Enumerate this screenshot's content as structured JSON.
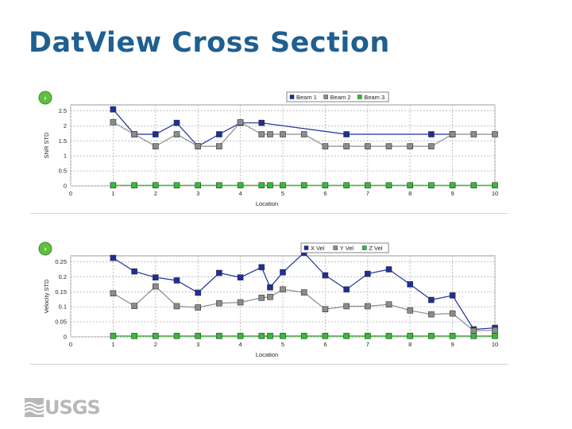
{
  "slide": {
    "title": "DatView Cross Section",
    "logo_text": "USGS"
  },
  "colors": {
    "title": "#1f5f91",
    "series_blue": "#1c2f9c",
    "series_gray": "#8c8c8c",
    "series_green": "#2fbf2f",
    "grid": "#c0c0c0"
  },
  "chart_data": [
    {
      "type": "line",
      "legend_position": "top-right",
      "grid": true,
      "xlabel": "Location",
      "ylabel": "SNR STD",
      "xlim": [
        0,
        10
      ],
      "ylim": [
        0,
        2.7
      ],
      "xticks": [
        0,
        1,
        2,
        3,
        4,
        5,
        6,
        7,
        8,
        9,
        10
      ],
      "yticks": [
        0,
        0.5,
        1,
        1.5,
        2,
        2.5
      ],
      "ytick_labels": [
        "0",
        "0.5",
        "1",
        "1.5",
        "2",
        "2.5"
      ],
      "series": [
        {
          "name": "Beam 1",
          "color": "#1c2f9c",
          "x": [
            1,
            1.5,
            2,
            2.5,
            3,
            3.5,
            4,
            4.5,
            6.5,
            8.5,
            9
          ],
          "y": [
            2.55,
            1.72,
            1.72,
            2.1,
            1.32,
            1.72,
            2.1,
            2.1,
            1.72,
            1.72,
            1.72
          ]
        },
        {
          "name": "Beam 2",
          "color": "#8c8c8c",
          "x": [
            1,
            1.5,
            2,
            2.5,
            3,
            3.5,
            4,
            4.5,
            4.7,
            5,
            5.5,
            6,
            6.5,
            7,
            7.5,
            8,
            8.5,
            9,
            9.5,
            10
          ],
          "y": [
            2.12,
            1.72,
            1.32,
            1.72,
            1.32,
            1.32,
            2.12,
            1.72,
            1.72,
            1.72,
            1.72,
            1.32,
            1.32,
            1.32,
            1.32,
            1.32,
            1.32,
            1.72,
            1.72,
            1.72
          ]
        },
        {
          "name": "Beam 3",
          "color": "#2fbf2f",
          "x": [
            1,
            1.5,
            2,
            2.5,
            3,
            3.5,
            4,
            4.5,
            4.7,
            5,
            5.5,
            6,
            6.5,
            7,
            7.5,
            8,
            8.5,
            9,
            9.5,
            10
          ],
          "y": [
            0.02,
            0.02,
            0.02,
            0.02,
            0.02,
            0.02,
            0.02,
            0.02,
            0.02,
            0.02,
            0.02,
            0.02,
            0.02,
            0.02,
            0.02,
            0.02,
            0.02,
            0.02,
            0.02,
            0.02
          ]
        }
      ]
    },
    {
      "type": "line",
      "legend_position": "top-right",
      "grid": true,
      "xlabel": "Location",
      "ylabel": "Velocity STD",
      "xlim": [
        0,
        10
      ],
      "ylim": [
        0,
        0.27
      ],
      "xticks": [
        0,
        1,
        2,
        3,
        4,
        5,
        6,
        7,
        8,
        9,
        10
      ],
      "yticks": [
        0,
        0.05,
        0.1,
        0.15,
        0.2,
        0.25
      ],
      "ytick_labels": [
        "0",
        "0.05",
        "0.1",
        "0.15",
        "0.2",
        "0.25"
      ],
      "series": [
        {
          "name": "X Vel",
          "color": "#1c2f9c",
          "x": [
            1,
            1.5,
            2,
            2.5,
            3,
            3.5,
            4,
            4.5,
            4.7,
            5,
            5.5,
            6,
            6.5,
            7,
            7.5,
            8,
            8.5,
            9,
            9.5,
            10
          ],
          "y": [
            0.263,
            0.218,
            0.198,
            0.188,
            0.147,
            0.213,
            0.198,
            0.232,
            0.165,
            0.215,
            0.28,
            0.205,
            0.158,
            0.21,
            0.225,
            0.175,
            0.123,
            0.138,
            0.025,
            0.03
          ]
        },
        {
          "name": "Y Vel",
          "color": "#8c8c8c",
          "x": [
            1,
            1.5,
            2,
            2.5,
            3,
            3.5,
            4,
            4.5,
            4.7,
            5,
            5.5,
            6,
            6.5,
            7,
            7.5,
            8,
            8.5,
            9,
            9.5,
            10
          ],
          "y": [
            0.145,
            0.103,
            0.168,
            0.102,
            0.098,
            0.112,
            0.115,
            0.13,
            0.133,
            0.158,
            0.148,
            0.092,
            0.102,
            0.102,
            0.108,
            0.088,
            0.075,
            0.078,
            0.02,
            0.022
          ]
        },
        {
          "name": "Z Vel",
          "color": "#2fbf2f",
          "x": [
            1,
            1.5,
            2,
            2.5,
            3,
            3.5,
            4,
            4.5,
            4.7,
            5,
            5.5,
            6,
            6.5,
            7,
            7.5,
            8,
            8.5,
            9,
            9.5,
            10
          ],
          "y": [
            0.003,
            0.003,
            0.003,
            0.003,
            0.003,
            0.003,
            0.003,
            0.003,
            0.003,
            0.003,
            0.003,
            0.003,
            0.003,
            0.003,
            0.003,
            0.003,
            0.003,
            0.003,
            0.003,
            0.003
          ]
        }
      ]
    }
  ]
}
